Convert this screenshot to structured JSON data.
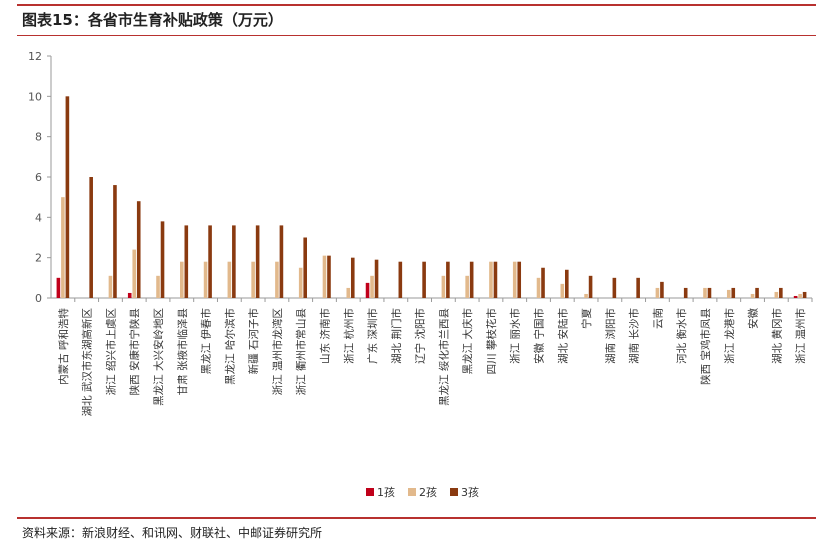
{
  "header": {
    "title": "图表15：各省市生育补贴政策（万元）"
  },
  "footer": {
    "source": "资料来源：新浪财经、和讯网、财联社、中邮证券研究所"
  },
  "colors": {
    "rule": "#b8312f",
    "child1": "#c0001a",
    "child2": "#e2b98c",
    "child3": "#8a3a10"
  },
  "chart_data": {
    "type": "bar",
    "title": "各省市生育补贴政策（万元）",
    "xlabel": "",
    "ylabel": "",
    "ylim": [
      0,
      12
    ],
    "yticks": [
      0,
      2,
      4,
      6,
      8,
      10,
      12
    ],
    "grid": false,
    "legend_position": "bottom-center",
    "categories": [
      "内蒙古 呼和浩特",
      "湖北 武汉市东湖高新区",
      "浙江 绍兴市上虞区",
      "陕西 安康市宁陕县",
      "黑龙江 大兴安岭地区",
      "甘肃 张掖市临泽县",
      "黑龙江 伊春市",
      "黑龙江 哈尔滨市",
      "新疆 石河子市",
      "浙江 温州市龙湾区",
      "浙江 衢州市常山县",
      "山东 济南市",
      "浙江 杭州市",
      "广东 深圳市",
      "湖北 荆门市",
      "辽宁 沈阳市",
      "黑龙江 绥化市兰西县",
      "黑龙江 大庆市",
      "四川 攀枝花市",
      "浙江 丽水市",
      "安徽 宁国市",
      "湖北 安陆市",
      "宁夏",
      "湖南 浏阳市",
      "湖南 长沙市",
      "云南",
      "河北 衡水市",
      "陕西 宝鸡市凤县",
      "浙江 龙港市",
      "安徽",
      "湖北 黄冈市",
      "浙江 温州市"
    ],
    "series": [
      {
        "name": "1孩",
        "values": [
          1.0,
          0,
          0,
          0.25,
          0,
          0,
          0,
          0,
          0,
          0,
          0,
          0,
          0,
          0.75,
          0,
          0,
          0,
          0,
          0,
          0,
          0,
          0,
          0,
          0,
          0,
          0,
          0,
          0,
          0,
          0,
          0,
          0.1
        ]
      },
      {
        "name": "2孩",
        "values": [
          5.0,
          0,
          1.1,
          2.4,
          1.1,
          1.8,
          1.8,
          1.8,
          1.8,
          1.8,
          1.5,
          2.1,
          0.5,
          1.1,
          0,
          0,
          1.1,
          1.1,
          1.8,
          1.8,
          1.0,
          0.7,
          0.2,
          0,
          0,
          0.5,
          0,
          0.5,
          0.4,
          0.2,
          0.3,
          0.2
        ]
      },
      {
        "name": "3孩",
        "values": [
          10.0,
          6.0,
          5.6,
          4.8,
          3.8,
          3.6,
          3.6,
          3.6,
          3.6,
          3.6,
          3.0,
          2.1,
          2.0,
          1.9,
          1.8,
          1.8,
          1.8,
          1.8,
          1.8,
          1.8,
          1.5,
          1.4,
          1.1,
          1.0,
          1.0,
          0.8,
          0.5,
          0.5,
          0.5,
          0.5,
          0.5,
          0.3
        ]
      }
    ]
  }
}
